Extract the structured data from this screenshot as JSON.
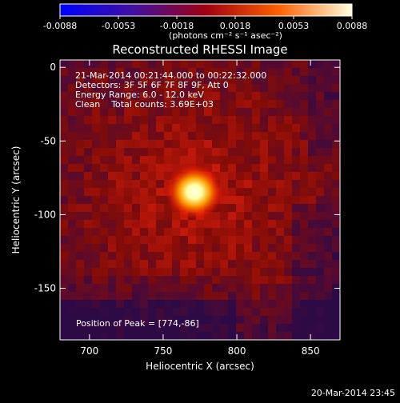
{
  "chart_data": {
    "type": "heatmap",
    "title": "Reconstructed RHESSI Image",
    "xlabel": "Heliocentric X (arcsec)",
    "ylabel": "Heliocentric Y (arcsec)",
    "xlim": [
      680,
      870
    ],
    "ylim": [
      -185,
      5
    ],
    "x_ticks": [
      700,
      750,
      800,
      850
    ],
    "y_ticks": [
      0,
      -50,
      -100,
      -150
    ],
    "colorbar": {
      "min": -0.0088,
      "max": 0.0088,
      "ticks": [
        "-0.0088",
        "-0.0053",
        "-0.0018",
        "0.0018",
        "0.0053",
        "0.0088"
      ],
      "units_label": "(photons cm⁻² s⁻¹ asec⁻²)"
    },
    "annotations": [
      "21-Mar-2014 00:21:44.000 to 00:22:32.000",
      "Detectors: 3F 5F 6F 7F 8F 9F, Att 0",
      "Energy Range: 6.0 - 12.0 keV",
      "Clean    Total counts: 3.69E+03"
    ],
    "peak_label": "Position of Peak = [774,-86]",
    "peak": {
      "x": 774,
      "y": -86,
      "value": 0.0088
    }
  },
  "footer": {
    "timestamp": "20-Mar-2014 23:45"
  }
}
